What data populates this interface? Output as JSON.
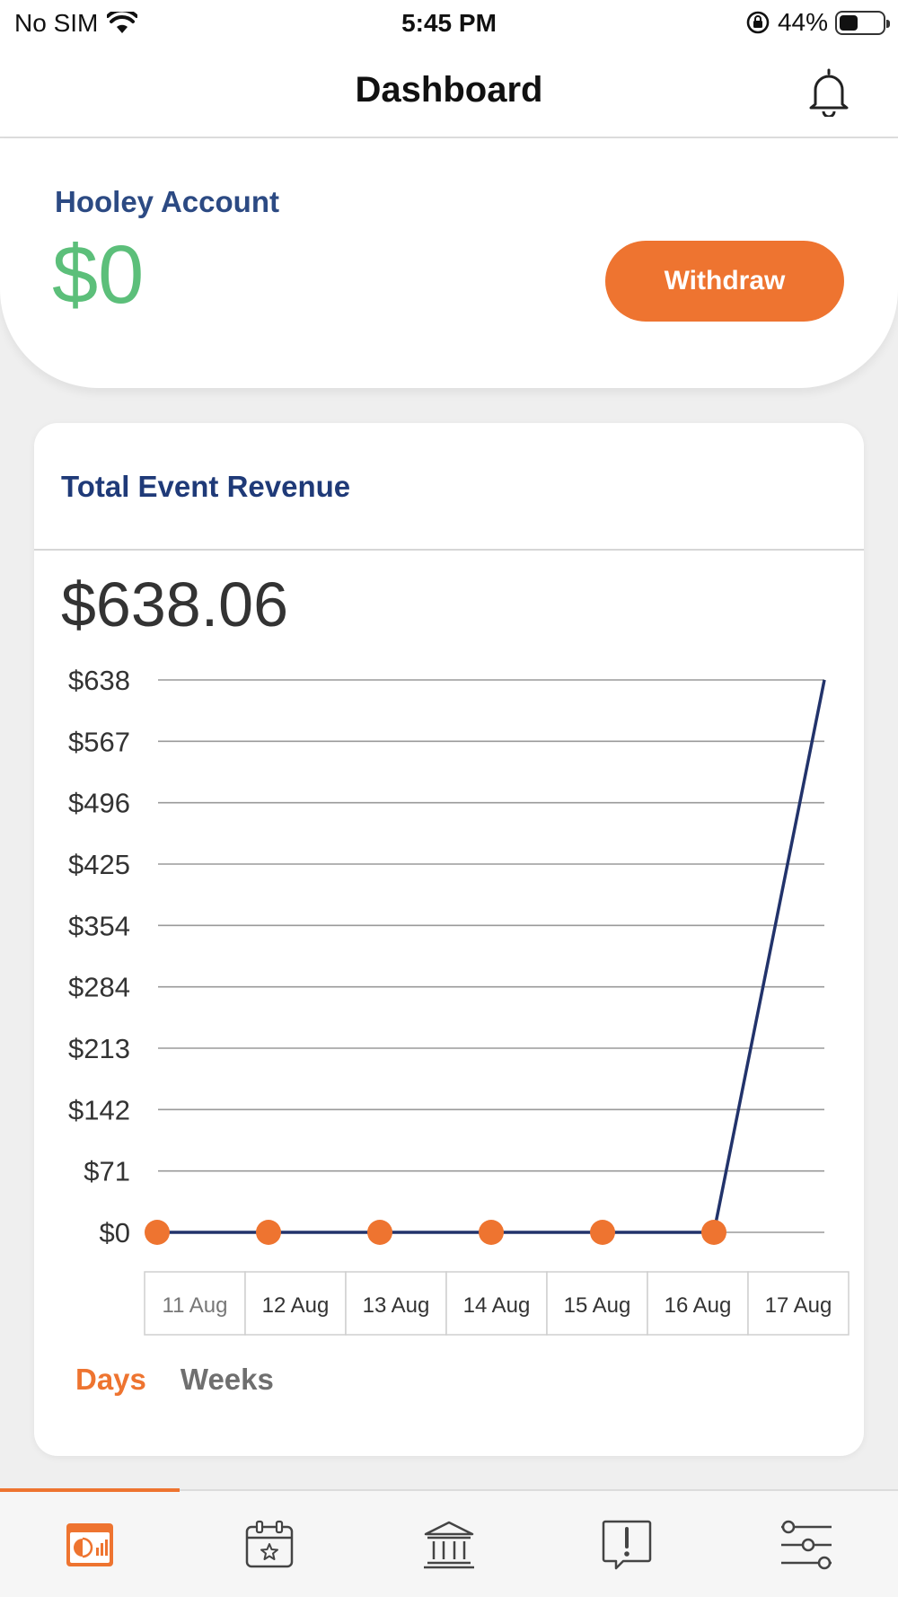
{
  "status_bar": {
    "carrier": "No SIM",
    "time": "5:45 PM",
    "battery": "44%",
    "battery_level": 0.44
  },
  "nav": {
    "title": "Dashboard",
    "notification_icon": "bell-icon"
  },
  "account": {
    "label": "Hooley Account",
    "balance": "$0",
    "withdraw_label": "Withdraw"
  },
  "revenue": {
    "title": "Total Event Revenue",
    "total": "$638.06",
    "ranges": [
      "Days",
      "Weeks"
    ],
    "selected_range": "Days"
  },
  "chart_data": {
    "type": "line",
    "categories": [
      "11 Aug",
      "12 Aug",
      "13 Aug",
      "14 Aug",
      "15 Aug",
      "16 Aug",
      "17 Aug"
    ],
    "values": [
      0,
      0,
      0,
      0,
      0,
      0,
      638.06
    ],
    "y_ticks": [
      "$638",
      "$567",
      "$496",
      "$425",
      "$354",
      "$284",
      "$213",
      "$142",
      "$71",
      "$0"
    ],
    "ylim": [
      0,
      638
    ],
    "grid": true,
    "line_color": "#22336b",
    "marker_color": "#ee7430"
  },
  "tabbar": {
    "items": [
      {
        "name": "dashboard",
        "icon": "dashboard-icon",
        "active": true
      },
      {
        "name": "events",
        "icon": "calendar-star-icon",
        "active": false
      },
      {
        "name": "bank",
        "icon": "bank-icon",
        "active": false
      },
      {
        "name": "alerts",
        "icon": "alert-message-icon",
        "active": false
      },
      {
        "name": "settings",
        "icon": "sliders-icon",
        "active": false
      }
    ]
  },
  "colors": {
    "accent": "#ee7430",
    "title_blue": "#1f3a78",
    "balance_green": "#5cbf7a"
  }
}
